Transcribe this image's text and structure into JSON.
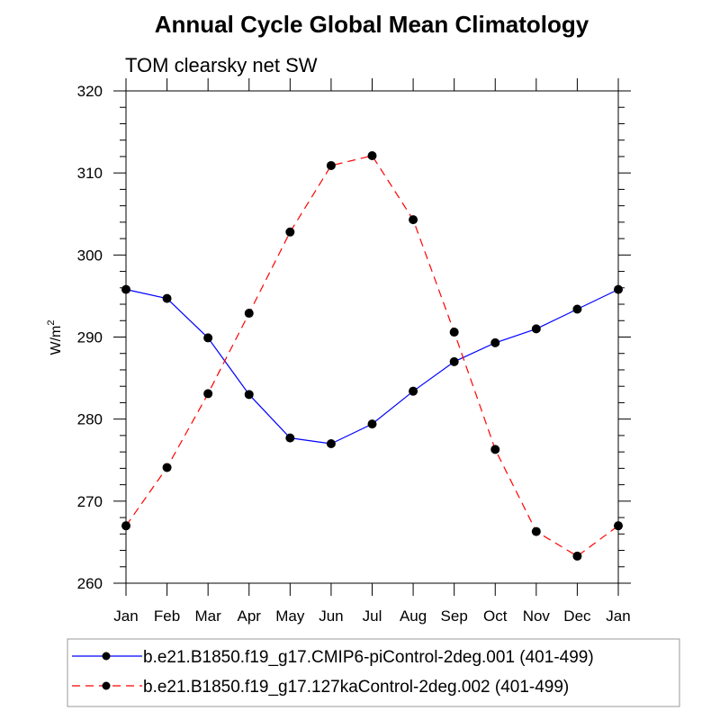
{
  "chart_data": {
    "type": "line",
    "title": "Annual Cycle Global Mean Climatology",
    "subtitle": "TOM clearsky net SW",
    "xlabel": "",
    "ylabel": "W/m",
    "ylabel_superscript": "2",
    "categories": [
      "Jan",
      "Feb",
      "Mar",
      "Apr",
      "May",
      "Jun",
      "Jul",
      "Aug",
      "Sep",
      "Oct",
      "Nov",
      "Dec",
      "Jan"
    ],
    "ylim": [
      260,
      320
    ],
    "y_major_ticks": [
      260,
      270,
      280,
      290,
      300,
      310,
      320
    ],
    "y_minor_step": 2,
    "grid": false,
    "legend_position": "bottom",
    "series": [
      {
        "name": "b.e21.B1850.f19_g17.CMIP6-piControl-2deg.001 (401-499)",
        "color": "#0000ff",
        "dash": "solid",
        "marker": "filled-circle",
        "marker_color": "#000000",
        "values": [
          295.8,
          294.7,
          289.9,
          283.0,
          277.7,
          277.0,
          279.4,
          283.4,
          287.0,
          289.3,
          291.0,
          293.4,
          295.8
        ]
      },
      {
        "name": "b.e21.B1850.f19_g17.127kaControl-2deg.002 (401-499)",
        "color": "#ff0000",
        "dash": "dashed",
        "marker": "filled-circle",
        "marker_color": "#000000",
        "values": [
          267.0,
          274.1,
          283.1,
          292.9,
          302.8,
          310.9,
          312.1,
          304.3,
          290.6,
          276.3,
          266.3,
          263.3,
          267.0
        ]
      }
    ]
  }
}
